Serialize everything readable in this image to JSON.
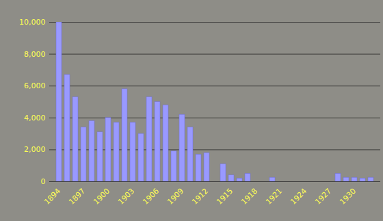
{
  "chart_data": {
    "type": "bar",
    "categories": [
      "1894",
      null,
      null,
      "1897",
      null,
      null,
      "1900",
      null,
      null,
      "1903",
      null,
      null,
      "1906",
      null,
      null,
      "1909",
      null,
      null,
      "1912",
      null,
      null,
      "1915",
      null,
      null,
      "1918",
      null,
      null,
      "1921",
      null,
      null,
      "1924",
      null,
      null,
      "1927",
      null,
      null,
      "1930",
      null,
      null
    ],
    "values": [
      10000,
      6700,
      5300,
      3400,
      3800,
      3100,
      4000,
      3700,
      5800,
      3700,
      3000,
      5300,
      5000,
      4800,
      1900,
      4200,
      3400,
      1700,
      1800,
      0,
      1100,
      400,
      200,
      500,
      0,
      0,
      250,
      0,
      0,
      0,
      0,
      0,
      0,
      0,
      500,
      250,
      250,
      200,
      250
    ],
    "color": "#9999ff",
    "ylim": [
      0,
      10000
    ],
    "yticks": [
      0,
      2000,
      4000,
      6000,
      8000,
      10000
    ],
    "grid": true
  }
}
